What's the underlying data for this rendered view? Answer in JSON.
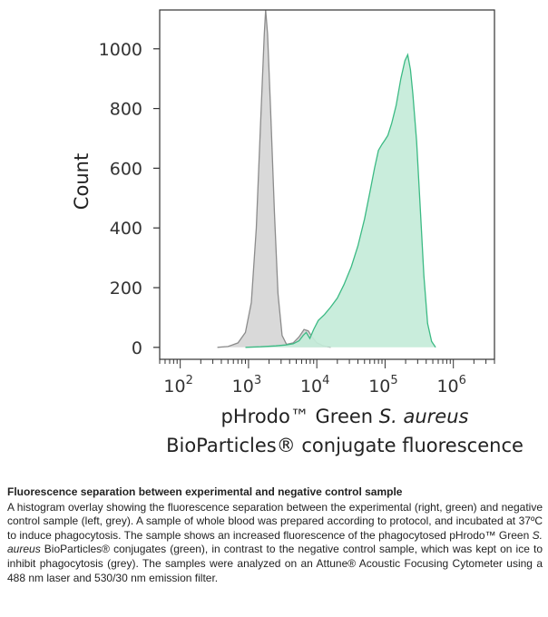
{
  "chart_data": {
    "type": "area",
    "ylabel": "Count",
    "xlabel_line1_prefix": "pHrodo™ Green ",
    "xlabel_line1_italic": "S. aureus",
    "xlabel_line2": "BioParticles® conjugate fluorescence",
    "x_scale": "log",
    "xlim": [
      50,
      4000000
    ],
    "ylim": [
      -40,
      1130
    ],
    "yticks": [
      "0",
      "200",
      "400",
      "600",
      "800",
      "1000"
    ],
    "ytick_values": [
      0,
      200,
      400,
      600,
      800,
      1000
    ],
    "xtick_values": [
      100,
      1000,
      10000,
      100000,
      1000000
    ],
    "xticks": [
      {
        "base": "10",
        "exp": "2"
      },
      {
        "base": "10",
        "exp": "3"
      },
      {
        "base": "10",
        "exp": "4"
      },
      {
        "base": "10",
        "exp": "5"
      },
      {
        "base": "10",
        "exp": "6"
      }
    ],
    "grid": false,
    "series": [
      {
        "fill": "#d6d6d6",
        "stroke": "#8c8c8c",
        "points": [
          [
            350,
            0
          ],
          [
            500,
            3
          ],
          [
            700,
            15
          ],
          [
            900,
            50
          ],
          [
            1100,
            150
          ],
          [
            1300,
            400
          ],
          [
            1500,
            750
          ],
          [
            1700,
            1050
          ],
          [
            1780,
            1130
          ],
          [
            1900,
            1050
          ],
          [
            2100,
            800
          ],
          [
            2400,
            450
          ],
          [
            2700,
            180
          ],
          [
            3100,
            40
          ],
          [
            3600,
            10
          ],
          [
            4500,
            15
          ],
          [
            5500,
            35
          ],
          [
            6500,
            60
          ],
          [
            7500,
            55
          ],
          [
            8500,
            35
          ],
          [
            10000,
            15
          ],
          [
            12500,
            5
          ],
          [
            16000,
            0
          ]
        ]
      },
      {
        "fill": "#c4ecd9",
        "stroke": "#3cba84",
        "points": [
          [
            900,
            0
          ],
          [
            1500,
            2
          ],
          [
            2500,
            5
          ],
          [
            3500,
            8
          ],
          [
            4500,
            12
          ],
          [
            5500,
            22
          ],
          [
            6300,
            40
          ],
          [
            7000,
            50
          ],
          [
            7900,
            30
          ],
          [
            9000,
            60
          ],
          [
            10500,
            90
          ],
          [
            13000,
            110
          ],
          [
            16000,
            135
          ],
          [
            20000,
            165
          ],
          [
            25000,
            210
          ],
          [
            32000,
            270
          ],
          [
            40000,
            340
          ],
          [
            50000,
            430
          ],
          [
            60000,
            520
          ],
          [
            70000,
            600
          ],
          [
            80000,
            660
          ],
          [
            90000,
            680
          ],
          [
            100000,
            695
          ],
          [
            110000,
            710
          ],
          [
            125000,
            750
          ],
          [
            145000,
            810
          ],
          [
            170000,
            900
          ],
          [
            195000,
            960
          ],
          [
            215000,
            980
          ],
          [
            235000,
            930
          ],
          [
            255000,
            850
          ],
          [
            290000,
            690
          ],
          [
            330000,
            450
          ],
          [
            370000,
            240
          ],
          [
            420000,
            80
          ],
          [
            480000,
            20
          ],
          [
            550000,
            0
          ]
        ]
      }
    ]
  },
  "caption": {
    "title": "Fluorescence separation between experimental and negative control sample",
    "body_1": "A histogram overlay showing the fluorescence separation between the experimental (right, green) and negative control sample (left, grey). A sample of whole blood was prepared according to protocol, and incubated at 37ºC to induce phagocytosis. The sample shows an increased fluorescence of the phagocytosed pHrodo™ Green ",
    "body_italic": "S. aureus",
    "body_2": " BioParticles® conjugates (green), in contrast to the negative control sample, which was kept on ice to inhibit phagocytosis (grey). The samples were analyzed on an Attune® Acoustic Focusing Cytometer using a 488 nm laser and 530/30 nm emission filter."
  }
}
